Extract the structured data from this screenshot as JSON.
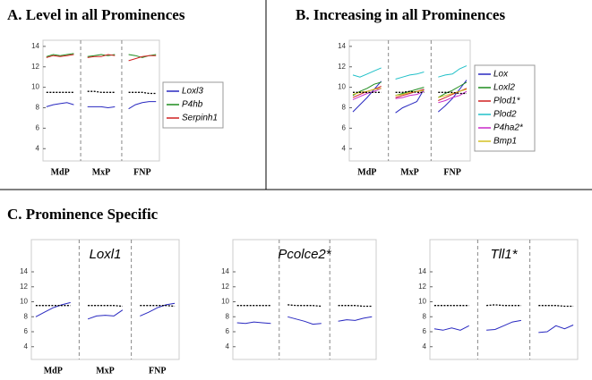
{
  "heading": "C. Prominence Specific",
  "chart_data": [
    {
      "type": "line",
      "title": "A. Level in all Prominences",
      "legend": "right",
      "categories": [
        null,
        null,
        "MdP",
        null,
        null,
        null,
        null,
        null,
        "MxP",
        null,
        null,
        null,
        null,
        null,
        "FNP",
        null,
        null
      ],
      "ylim": [
        2.8,
        14.6
      ],
      "yticks": [
        4,
        6,
        8,
        10,
        12,
        14
      ],
      "series": [
        {
          "name": "Loxl3",
          "color": "#2828c0",
          "values": [
            8.1,
            8.3,
            8.4,
            8.5,
            8.3,
            null,
            8.1,
            8.1,
            8.1,
            8.0,
            8.1,
            null,
            7.9,
            8.3,
            8.5,
            8.6,
            8.6
          ]
        },
        {
          "name": "P4hb",
          "color": "#1e8c1e",
          "values": [
            13.0,
            13.2,
            13.1,
            13.2,
            13.3,
            null,
            13.0,
            13.1,
            13.2,
            13.1,
            13.2,
            null,
            13.2,
            13.1,
            12.9,
            13.1,
            13.2
          ]
        },
        {
          "name": "Serpinh1",
          "color": "#d02020",
          "values": [
            12.9,
            13.1,
            13.0,
            13.1,
            13.2,
            null,
            12.9,
            13.0,
            13.0,
            13.2,
            13.1,
            null,
            12.6,
            12.8,
            13.0,
            13.1,
            13.1
          ]
        },
        {
          "color": "#000000",
          "dash": true,
          "values": [
            9.5,
            9.5,
            9.5,
            9.5,
            9.5,
            null,
            9.6,
            9.6,
            9.5,
            9.5,
            9.5,
            null,
            9.5,
            9.5,
            9.5,
            9.4,
            9.4
          ]
        }
      ]
    },
    {
      "type": "line",
      "title": "B. Increasing in all Prominences",
      "legend": "right",
      "categories": [
        null,
        null,
        "MdP",
        null,
        null,
        null,
        null,
        null,
        "MxP",
        null,
        null,
        null,
        null,
        null,
        "FNP",
        null,
        null
      ],
      "ylim": [
        2.8,
        14.6
      ],
      "yticks": [
        4,
        6,
        8,
        10,
        12,
        14
      ],
      "series": [
        {
          "name": "Lox",
          "color": "#2828c0",
          "values": [
            7.6,
            8.3,
            9.0,
            9.8,
            10.6,
            null,
            7.5,
            8.0,
            8.3,
            8.6,
            9.8,
            null,
            7.6,
            8.2,
            8.9,
            9.8,
            10.7
          ]
        },
        {
          "name": "Loxl2",
          "color": "#1e8c1e",
          "values": [
            9.2,
            9.6,
            9.9,
            10.3,
            10.5,
            null,
            9.2,
            9.4,
            9.6,
            9.8,
            10.0,
            null,
            9.0,
            9.4,
            9.7,
            10.1,
            10.5
          ]
        },
        {
          "name": "Plod1*",
          "color": "#d02020",
          "values": [
            9.0,
            9.3,
            9.6,
            9.8,
            10.1,
            null,
            9.0,
            9.2,
            9.4,
            9.6,
            9.8,
            null,
            8.7,
            9.0,
            9.3,
            9.6,
            9.9
          ]
        },
        {
          "name": "Plod2",
          "color": "#20c0c8",
          "values": [
            11.2,
            11.0,
            11.3,
            11.6,
            11.9,
            null,
            10.8,
            11.0,
            11.2,
            11.3,
            11.5,
            null,
            11.0,
            11.2,
            11.3,
            11.8,
            12.1
          ]
        },
        {
          "name": "P4ha2*",
          "color": "#c828c8",
          "values": [
            8.8,
            9.1,
            9.4,
            9.6,
            9.9,
            null,
            8.9,
            9.0,
            9.2,
            9.3,
            9.6,
            null,
            8.5,
            8.7,
            9.0,
            9.2,
            9.6
          ]
        },
        {
          "name": "Bmp1",
          "color": "#d4c020",
          "values": [
            9.3,
            9.5,
            9.6,
            9.8,
            9.9,
            null,
            9.2,
            9.3,
            9.5,
            9.6,
            9.7,
            null,
            9.0,
            9.2,
            9.4,
            9.6,
            9.8
          ]
        },
        {
          "color": "#000000",
          "dash": true,
          "values": [
            9.5,
            9.5,
            9.5,
            9.5,
            9.5,
            null,
            9.5,
            9.5,
            9.6,
            9.5,
            9.5,
            null,
            9.5,
            9.5,
            9.5,
            9.4,
            9.4
          ]
        }
      ]
    },
    {
      "type": "line",
      "title": "Loxl1",
      "categories": [
        null,
        null,
        "MdP",
        null,
        null,
        null,
        null,
        null,
        "MxP",
        null,
        null,
        null,
        null,
        null,
        "FNP",
        null,
        null
      ],
      "ylim": [
        2.3,
        18.3
      ],
      "yticks": [
        4,
        6,
        8,
        10,
        12,
        14
      ],
      "series": [
        {
          "color": "#2828c0",
          "values": [
            8.0,
            8.6,
            9.2,
            9.6,
            9.9,
            null,
            7.7,
            8.1,
            8.2,
            8.1,
            8.9,
            null,
            8.1,
            8.6,
            9.2,
            9.6,
            9.8
          ]
        },
        {
          "color": "#000000",
          "dash": true,
          "values": [
            9.5,
            9.5,
            9.5,
            9.5,
            9.5,
            null,
            9.5,
            9.5,
            9.5,
            9.5,
            9.4,
            null,
            9.5,
            9.5,
            9.5,
            9.5,
            9.4
          ]
        }
      ]
    },
    {
      "type": "line",
      "title": "Pcolce2*",
      "ylim": [
        2.3,
        18.3
      ],
      "yticks": [
        4,
        6,
        8,
        10,
        12,
        14
      ],
      "series": [
        {
          "color": "#2828c0",
          "values": [
            7.2,
            7.1,
            7.3,
            7.2,
            7.1,
            null,
            8.0,
            7.7,
            7.4,
            7.0,
            7.1,
            null,
            7.4,
            7.6,
            7.5,
            7.8,
            8.0
          ]
        },
        {
          "color": "#000000",
          "dash": true,
          "values": [
            9.5,
            9.5,
            9.5,
            9.5,
            9.5,
            null,
            9.6,
            9.5,
            9.5,
            9.5,
            9.4,
            null,
            9.5,
            9.5,
            9.5,
            9.4,
            9.4
          ]
        }
      ]
    },
    {
      "type": "line",
      "title": "Tll1*",
      "ylim": [
        2.3,
        18.3
      ],
      "yticks": [
        4,
        6,
        8,
        10,
        12,
        14
      ],
      "series": [
        {
          "color": "#2828c0",
          "values": [
            6.4,
            6.2,
            6.5,
            6.2,
            6.8,
            null,
            6.2,
            6.3,
            6.8,
            7.3,
            7.5,
            null,
            5.9,
            6.0,
            6.8,
            6.4,
            6.9
          ]
        },
        {
          "color": "#000000",
          "dash": true,
          "values": [
            9.5,
            9.5,
            9.5,
            9.5,
            9.5,
            null,
            9.5,
            9.6,
            9.5,
            9.5,
            9.5,
            null,
            9.5,
            9.5,
            9.5,
            9.4,
            9.4
          ]
        }
      ]
    }
  ]
}
